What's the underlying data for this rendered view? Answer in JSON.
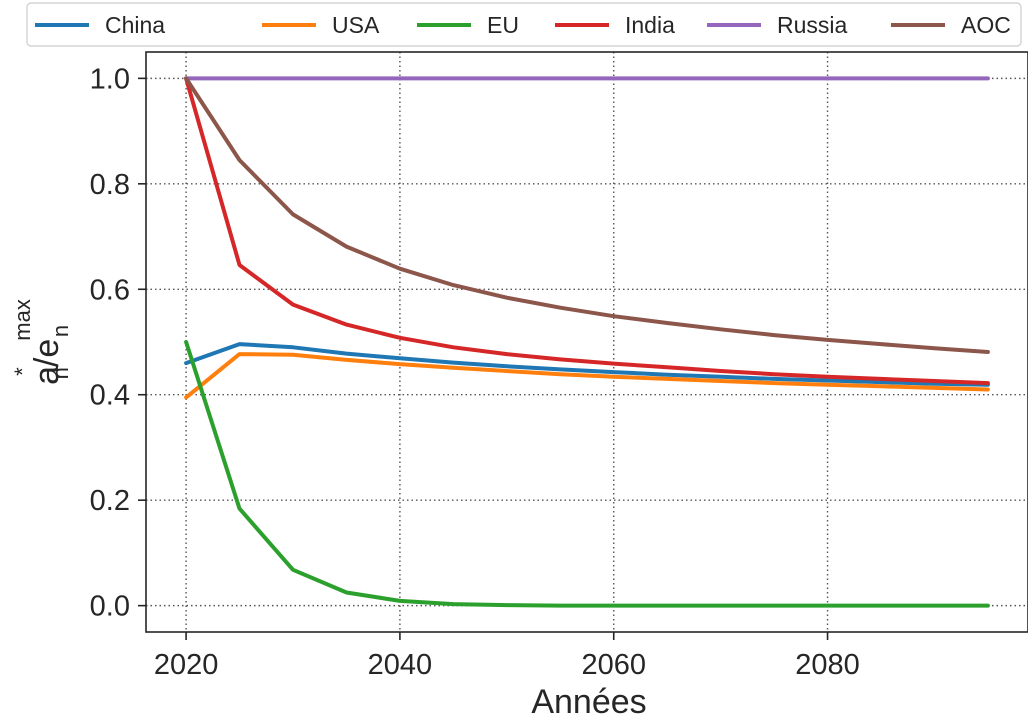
{
  "chart_data": {
    "type": "line",
    "x": [
      2020,
      2025,
      2030,
      2035,
      2040,
      2045,
      2050,
      2055,
      2060,
      2065,
      2070,
      2075,
      2080,
      2085,
      2090,
      2095
    ],
    "series": [
      {
        "name": "China",
        "color": "#1f77b4",
        "values": [
          0.46,
          0.496,
          0.49,
          0.478,
          0.469,
          0.461,
          0.454,
          0.448,
          0.443,
          0.438,
          0.434,
          0.43,
          0.427,
          0.424,
          0.421,
          0.419
        ]
      },
      {
        "name": "USA",
        "color": "#ff7f0e",
        "values": [
          0.395,
          0.477,
          0.476,
          0.466,
          0.458,
          0.451,
          0.445,
          0.439,
          0.434,
          0.43,
          0.426,
          0.422,
          0.419,
          0.416,
          0.413,
          0.41
        ]
      },
      {
        "name": "EU",
        "color": "#2ca02c",
        "values": [
          0.5,
          0.184,
          0.068,
          0.025,
          0.009,
          0.003,
          0.001,
          0.0,
          0.0,
          0.0,
          0.0,
          0.0,
          0.0,
          0.0,
          0.0,
          0.0
        ]
      },
      {
        "name": "India",
        "color": "#d62728",
        "values": [
          1.0,
          0.646,
          0.571,
          0.533,
          0.508,
          0.49,
          0.477,
          0.467,
          0.459,
          0.452,
          0.445,
          0.439,
          0.434,
          0.43,
          0.426,
          0.422
        ]
      },
      {
        "name": "Russia",
        "color": "#9467bd",
        "values": [
          1.0,
          1.0,
          1.0,
          1.0,
          1.0,
          1.0,
          1.0,
          1.0,
          1.0,
          1.0,
          1.0,
          1.0,
          1.0,
          1.0,
          1.0,
          1.0
        ]
      },
      {
        "name": "AOC",
        "color": "#8c564b",
        "values": [
          1.0,
          0.845,
          0.742,
          0.681,
          0.639,
          0.608,
          0.584,
          0.565,
          0.549,
          0.536,
          0.524,
          0.513,
          0.504,
          0.496,
          0.488,
          0.481
        ]
      }
    ],
    "xlabel": "Années",
    "ylabel": {
      "base": "a",
      "base_sub": "n",
      "base_sup": "*",
      "sep": "/e",
      "denom_sub": "n",
      "denom_sup": "max"
    },
    "xlim": [
      2016.25,
      2098.75
    ],
    "ylim": [
      -0.05,
      1.05
    ],
    "xticks": [
      2020,
      2040,
      2060,
      2080
    ],
    "yticks": [
      0.0,
      0.2,
      0.4,
      0.6,
      0.8,
      1.0
    ],
    "xtick_labels": [
      "2020",
      "2040",
      "2060",
      "2080"
    ],
    "ytick_labels": [
      "0.0",
      "0.2",
      "0.4",
      "0.6",
      "0.8",
      "1.0"
    ],
    "grid": true,
    "grid_style": "dotted",
    "legend": "top-outside"
  }
}
